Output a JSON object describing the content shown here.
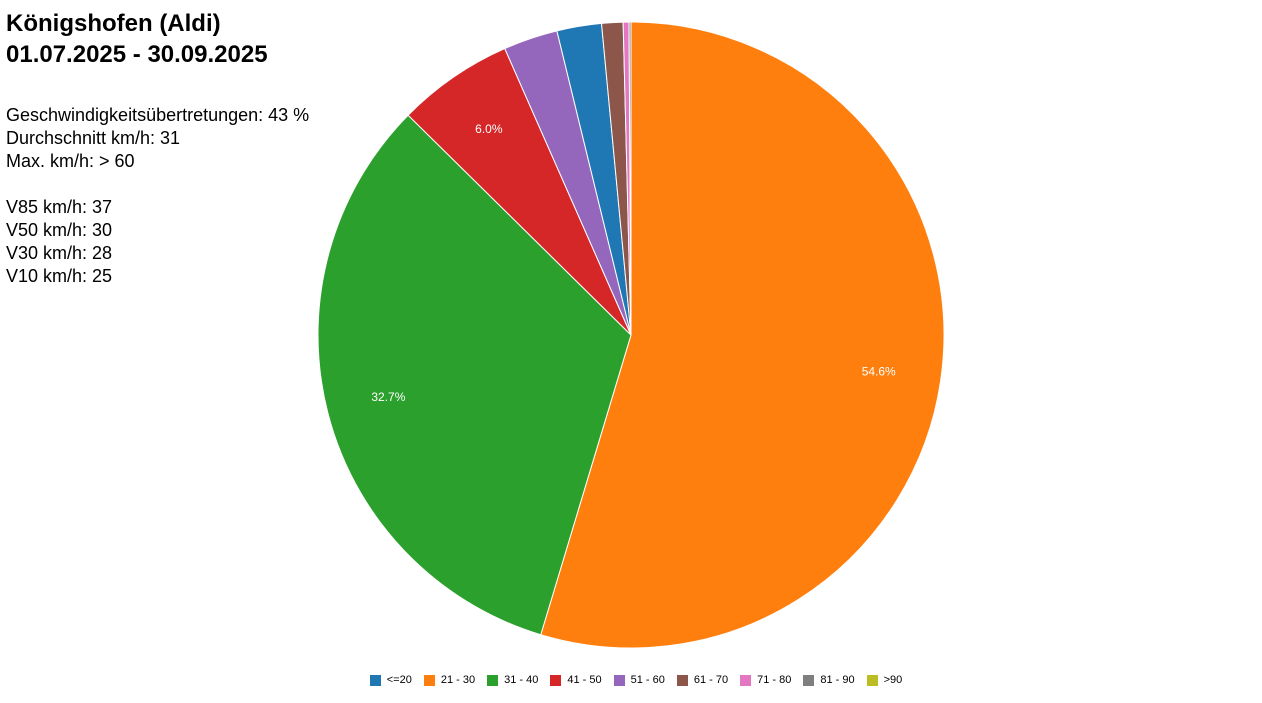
{
  "header": {
    "title": "Königshofen (Aldi)",
    "subtitle": "01.07.2025 - 30.09.2025"
  },
  "stats": {
    "lines": [
      "Geschwindigkeitsübertretungen: 43 %",
      "Durchschnitt km/h: 31",
      "Max. km/h: > 60"
    ],
    "v_lines": [
      "V85 km/h: 37",
      "V50 km/h: 30",
      "V30 km/h: 28",
      "V10 km/h: 25"
    ]
  },
  "chart_data": {
    "type": "pie",
    "start": "12 o'clock",
    "direction": "clockwise",
    "legend_position": "bottom-center",
    "slices": [
      {
        "label": "21 - 30",
        "value": 54.6,
        "color": "#ff7f0e",
        "data_label": "54.6%"
      },
      {
        "label": "31 - 40",
        "value": 32.7,
        "color": "#2ca02c",
        "data_label": "32.7%"
      },
      {
        "label": "41 - 50",
        "value": 6.0,
        "color": "#d62728",
        "data_label": "6.0%"
      },
      {
        "label": "51 - 60",
        "value": 2.8,
        "color": "#9467bd",
        "data_label": ""
      },
      {
        "label": "<=20",
        "value": 2.3,
        "color": "#1f77b4",
        "data_label": ""
      },
      {
        "label": "61 - 70",
        "value": 1.1,
        "color": "#8c564b",
        "data_label": ""
      },
      {
        "label": "71 - 80",
        "value": 0.3,
        "color": "#e377c2",
        "data_label": ""
      },
      {
        "label": "81 - 90",
        "value": 0.1,
        "color": "#7f7f7f",
        "data_label": ""
      },
      {
        "label": ">90",
        "value": 0.0,
        "color": "#bcbd22",
        "data_label": ""
      }
    ],
    "legend": [
      {
        "label": "<=20",
        "color": "#1f77b4"
      },
      {
        "label": "21 - 30",
        "color": "#ff7f0e"
      },
      {
        "label": "31 - 40",
        "color": "#2ca02c"
      },
      {
        "label": "41 - 50",
        "color": "#d62728"
      },
      {
        "label": "51 - 60",
        "color": "#9467bd"
      },
      {
        "label": "61 - 70",
        "color": "#8c564b"
      },
      {
        "label": "71 - 80",
        "color": "#e377c2"
      },
      {
        "label": "81 - 90",
        "color": "#7f7f7f"
      },
      {
        "label": ">90",
        "color": "#bcbd22"
      }
    ]
  }
}
